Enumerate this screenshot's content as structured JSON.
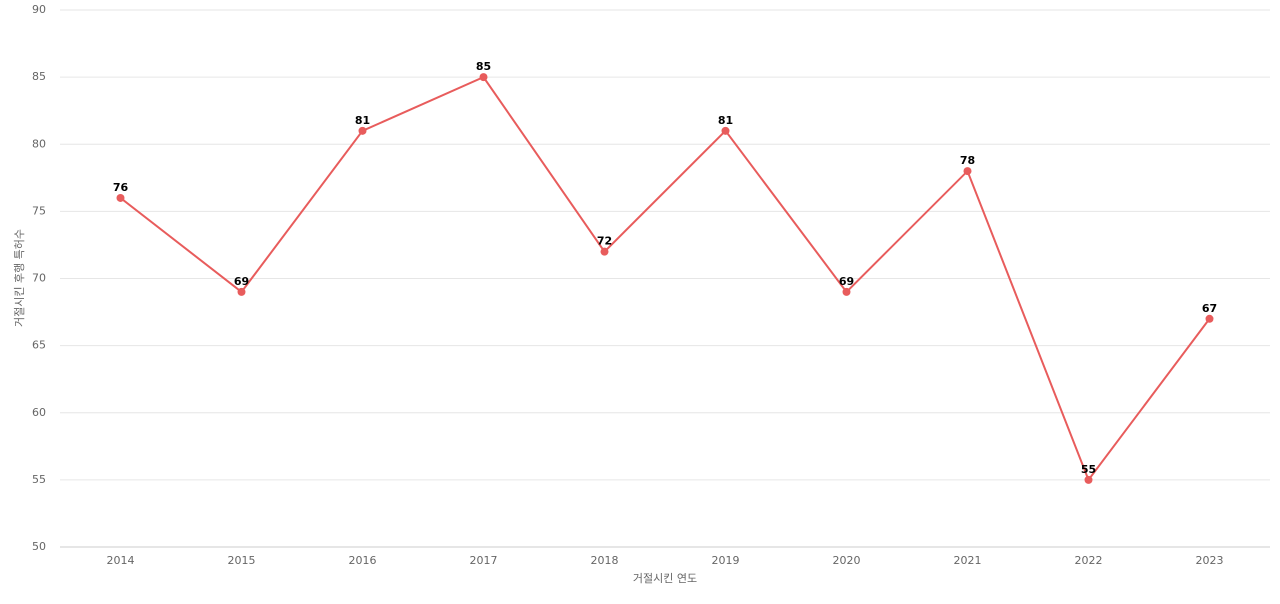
{
  "chart_data": {
    "type": "line",
    "categories": [
      "2014",
      "2015",
      "2016",
      "2017",
      "2018",
      "2019",
      "2020",
      "2021",
      "2022",
      "2023"
    ],
    "values": [
      76,
      69,
      81,
      85,
      72,
      81,
      69,
      78,
      55,
      67
    ],
    "color": "#e85c5c",
    "x_label": "거절시킨 연도",
    "y_label": "거절시킨 후행 특허수",
    "ylim": [
      50,
      90
    ],
    "yticks": [
      50,
      55,
      60,
      65,
      70,
      75,
      80,
      85,
      90
    ],
    "grid": true
  }
}
